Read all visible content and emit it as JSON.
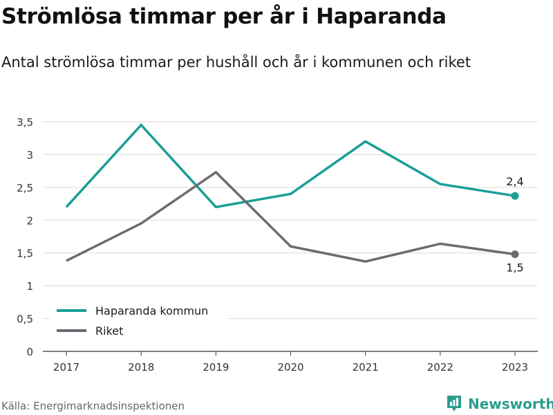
{
  "header": {
    "title": "Strömlösa timmar per år i Haparanda",
    "subtitle": "Antal strömlösa timmar per hushåll och år i kommunen och riket"
  },
  "footer": {
    "source": "Källa: Energimarknadsinspektionen",
    "brand": "Newsworthy",
    "brand_icon": "bar-chart-icon"
  },
  "colors": {
    "haparanda": "#1a9e96",
    "riket": "#6b6a72",
    "grid": "#d9d9d9",
    "axis": "#333333",
    "brand": "#2a9d8f"
  },
  "chart_data": {
    "type": "line",
    "categories": [
      "2017",
      "2018",
      "2019",
      "2020",
      "2021",
      "2022",
      "2023"
    ],
    "series": [
      {
        "name": "Haparanda kommun",
        "values": [
          2.2,
          3.45,
          2.2,
          2.4,
          3.2,
          2.55,
          2.37
        ]
      },
      {
        "name": "Riket",
        "values": [
          1.38,
          1.95,
          2.73,
          1.6,
          1.37,
          1.64,
          1.48
        ]
      }
    ],
    "ylim": [
      0,
      3.5
    ],
    "yticks": [
      0,
      0.5,
      1,
      1.5,
      2,
      2.5,
      3,
      3.5
    ],
    "ytick_labels": [
      "0",
      "0,5",
      "1",
      "1,5",
      "2",
      "2,5",
      "3",
      "3,5"
    ],
    "end_labels": [
      "2,4",
      "1,5"
    ],
    "grid": true,
    "legend": "bottom-left",
    "xlabel": "",
    "ylabel": ""
  }
}
